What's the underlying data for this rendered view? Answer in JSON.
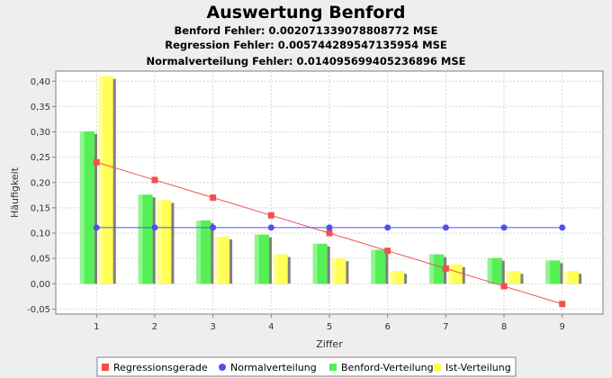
{
  "chart_data": {
    "type": "bar",
    "title": "Auswertung Benford",
    "subtitles": [
      "Benford Fehler: 0.002071339078808772 MSE",
      "Regression Fehler: 0.005744289547135954 MSE",
      "Normalverteilung Fehler: 0.014095699405236896 MSE"
    ],
    "xlabel": "Ziffer",
    "ylabel": "Häufigkeit",
    "categories": [
      "1",
      "2",
      "3",
      "4",
      "5",
      "6",
      "7",
      "8",
      "9"
    ],
    "xlim": [
      0.3,
      9.7
    ],
    "ylim": [
      -0.06,
      0.42
    ],
    "yticks": [
      -0.05,
      0.0,
      0.05,
      0.1,
      0.15,
      0.2,
      0.25,
      0.3,
      0.35,
      0.4
    ],
    "ytick_labels": [
      "-0,05",
      "0,00",
      "0,05",
      "0,10",
      "0,15",
      "0,20",
      "0,25",
      "0,30",
      "0,35",
      "0,40"
    ],
    "grid": true,
    "legend_position": "bottom",
    "series": [
      {
        "name": "Regressionsgerade",
        "kind": "line",
        "marker": "square",
        "color": "#f05050",
        "values": [
          0.24,
          0.205,
          0.17,
          0.135,
          0.1,
          0.065,
          0.03,
          -0.005,
          -0.04
        ]
      },
      {
        "name": "Normalverteilung",
        "kind": "line",
        "marker": "circle",
        "color": "#5050f0",
        "values": [
          0.111,
          0.111,
          0.111,
          0.111,
          0.111,
          0.111,
          0.111,
          0.111,
          0.111
        ]
      },
      {
        "name": "Benford-Verteilung",
        "kind": "bar",
        "color": "#55f055",
        "values": [
          0.301,
          0.176,
          0.125,
          0.097,
          0.079,
          0.067,
          0.058,
          0.051,
          0.046
        ]
      },
      {
        "name": "Ist-Verteilung",
        "kind": "bar",
        "color": "#ffff55",
        "values": [
          0.41,
          0.165,
          0.093,
          0.058,
          0.05,
          0.025,
          0.038,
          0.025,
          0.025
        ]
      }
    ]
  }
}
